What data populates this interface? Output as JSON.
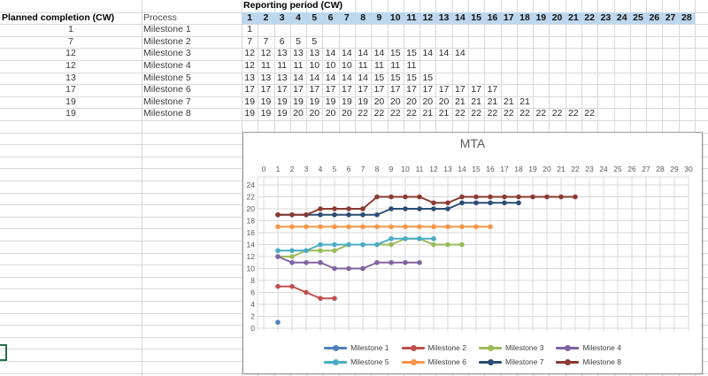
{
  "sheet": {
    "headers": {
      "planned": "Planned completion (CW)",
      "process": "Process",
      "reporting": "Reporting period (CW)"
    },
    "period_columns": [
      1,
      2,
      3,
      4,
      5,
      6,
      7,
      8,
      9,
      10,
      11,
      12,
      13,
      14,
      15,
      16,
      17,
      18,
      19,
      20,
      21,
      22,
      23,
      24,
      25,
      26,
      27,
      28
    ],
    "rows": [
      {
        "planned": 1,
        "process": "Milestone 1",
        "values": [
          1
        ]
      },
      {
        "planned": 7,
        "process": "Milestone 2",
        "values": [
          7,
          7,
          6,
          5,
          5
        ]
      },
      {
        "planned": 12,
        "process": "Milestone 3",
        "values": [
          12,
          12,
          13,
          13,
          13,
          14,
          14,
          14,
          14,
          15,
          15,
          14,
          14,
          14
        ]
      },
      {
        "planned": 12,
        "process": "Milestone 4",
        "values": [
          12,
          11,
          11,
          11,
          10,
          10,
          10,
          11,
          11,
          11,
          11
        ]
      },
      {
        "planned": 13,
        "process": "Milestone 5",
        "values": [
          13,
          13,
          13,
          14,
          14,
          14,
          14,
          14,
          15,
          15,
          15,
          15
        ]
      },
      {
        "planned": 17,
        "process": "Milestone 6",
        "values": [
          17,
          17,
          17,
          17,
          17,
          17,
          17,
          17,
          17,
          17,
          17,
          17,
          17,
          17,
          17,
          17
        ]
      },
      {
        "planned": 19,
        "process": "Milestone 7",
        "values": [
          19,
          19,
          19,
          19,
          19,
          19,
          19,
          19,
          20,
          20,
          20,
          20,
          20,
          21,
          21,
          21,
          21,
          21
        ]
      },
      {
        "planned": 19,
        "process": "Milestone 8",
        "values": [
          19,
          19,
          19,
          20,
          20,
          20,
          20,
          22,
          22,
          22,
          22,
          21,
          21,
          22,
          22,
          22,
          22,
          22,
          22,
          22,
          22,
          22
        ]
      }
    ],
    "colors": {
      "header_fill": "#BDD7EE",
      "gridline": "#D9D9D9",
      "selection_green": "#217346"
    }
  },
  "chart_data": {
    "type": "line",
    "title": "MTA",
    "xlabel": "",
    "ylabel": "",
    "xlim": [
      0,
      30
    ],
    "ylim": [
      0,
      24
    ],
    "x_ticks": [
      0,
      1,
      2,
      3,
      4,
      5,
      6,
      7,
      8,
      9,
      10,
      11,
      12,
      13,
      14,
      15,
      16,
      17,
      18,
      19,
      20,
      21,
      22,
      23,
      24,
      25,
      26,
      27,
      28,
      29,
      30
    ],
    "y_ticks": [
      0,
      2,
      4,
      6,
      8,
      10,
      12,
      14,
      16,
      18,
      20,
      22,
      24
    ],
    "grid": true,
    "legend_position": "bottom",
    "marker": "circle",
    "axis_text_color": "#595959",
    "gridline_color": "#D9D9D9",
    "series": [
      {
        "name": "Milestone 1",
        "color": "#4F81BD",
        "x": [
          1
        ],
        "values": [
          1
        ]
      },
      {
        "name": "Milestone 2",
        "color": "#C0504D",
        "x": [
          1,
          2,
          3,
          4,
          5
        ],
        "values": [
          7,
          7,
          6,
          5,
          5
        ]
      },
      {
        "name": "Milestone 3",
        "color": "#9BBB59",
        "x": [
          1,
          2,
          3,
          4,
          5,
          6,
          7,
          8,
          9,
          10,
          11,
          12,
          13,
          14
        ],
        "values": [
          12,
          12,
          13,
          13,
          13,
          14,
          14,
          14,
          14,
          15,
          15,
          14,
          14,
          14
        ]
      },
      {
        "name": "Milestone 4",
        "color": "#8064A2",
        "x": [
          1,
          2,
          3,
          4,
          5,
          6,
          7,
          8,
          9,
          10,
          11
        ],
        "values": [
          12,
          11,
          11,
          11,
          10,
          10,
          10,
          11,
          11,
          11,
          11
        ]
      },
      {
        "name": "Milestone 5",
        "color": "#4BACC6",
        "x": [
          1,
          2,
          3,
          4,
          5,
          6,
          7,
          8,
          9,
          10,
          11,
          12
        ],
        "values": [
          13,
          13,
          13,
          14,
          14,
          14,
          14,
          14,
          15,
          15,
          15,
          15
        ]
      },
      {
        "name": "Milestone 6",
        "color": "#F79646",
        "x": [
          1,
          2,
          3,
          4,
          5,
          6,
          7,
          8,
          9,
          10,
          11,
          12,
          13,
          14,
          15,
          16
        ],
        "values": [
          17,
          17,
          17,
          17,
          17,
          17,
          17,
          17,
          17,
          17,
          17,
          17,
          17,
          17,
          17,
          17
        ]
      },
      {
        "name": "Milestone 7",
        "color": "#2C4D75",
        "x": [
          1,
          2,
          3,
          4,
          5,
          6,
          7,
          8,
          9,
          10,
          11,
          12,
          13,
          14,
          15,
          16,
          17,
          18
        ],
        "values": [
          19,
          19,
          19,
          19,
          19,
          19,
          19,
          19,
          20,
          20,
          20,
          20,
          20,
          21,
          21,
          21,
          21,
          21
        ]
      },
      {
        "name": "Milestone 8",
        "color": "#8C3A32",
        "x": [
          1,
          2,
          3,
          4,
          5,
          6,
          7,
          8,
          9,
          10,
          11,
          12,
          13,
          14,
          15,
          16,
          17,
          18,
          19,
          20,
          21,
          22
        ],
        "values": [
          19,
          19,
          19,
          20,
          20,
          20,
          20,
          22,
          22,
          22,
          22,
          21,
          21,
          22,
          22,
          22,
          22,
          22,
          22,
          22,
          22,
          22
        ]
      }
    ]
  }
}
